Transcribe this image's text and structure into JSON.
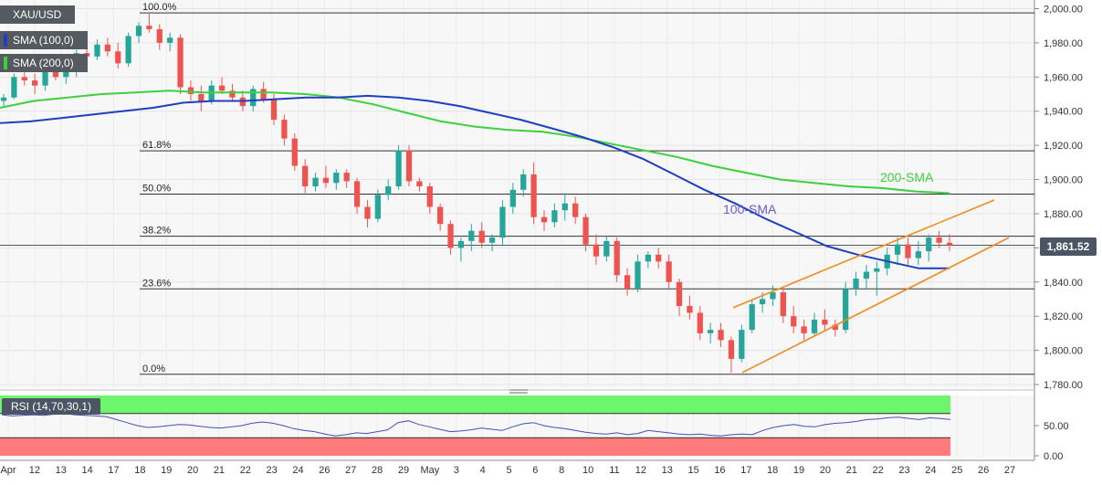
{
  "legend": {
    "symbol": "XAU/USD",
    "sma100": "SMA (100,0)",
    "sma200": "SMA (200,0)",
    "rsi": "RSI (14,70,30,1)"
  },
  "colors": {
    "bull": "#26a69a",
    "bear": "#ef5350",
    "sma100": "#1f3fbf",
    "sma200": "#3cd13c",
    "channel": "#f08c1e",
    "rsi_line": "#3f51b5",
    "rsi_overbought": "#6df56d",
    "rsi_oversold": "#ff7b7b"
  },
  "chart_data": [
    {
      "type": "candlestick",
      "title": "XAU/USD",
      "current_price_label": "1,861.52",
      "current_price": 1861.52,
      "ylim": [
        1780,
        2000
      ],
      "y_ticks": [
        "2,000.00",
        "1,980.00",
        "1,960.00",
        "1,940.00",
        "1,920.00",
        "1,900.00",
        "1,880.00",
        "1,860.00",
        "1,840.00",
        "1,820.00",
        "1,800.00",
        "1,780.00"
      ],
      "y_tick_values": [
        2000,
        1980,
        1960,
        1940,
        1920,
        1900,
        1880,
        1860,
        1840,
        1820,
        1800,
        1780
      ],
      "x_ticks": [
        "Apr",
        "12",
        "13",
        "14",
        "17",
        "18",
        "19",
        "20",
        "21",
        "22",
        "23",
        "24",
        "26",
        "27",
        "28",
        "29",
        "May",
        "3",
        "4",
        "5",
        "6",
        "8",
        "10",
        "11",
        "12",
        "13",
        "15",
        "16",
        "17",
        "18",
        "19",
        "20",
        "21",
        "22",
        "23",
        "24",
        "25",
        "26",
        "27"
      ],
      "fibonacci": [
        {
          "label": "100.0%",
          "price": 1997.5
        },
        {
          "label": "61.8%",
          "price": 1916.8
        },
        {
          "label": "50.0%",
          "price": 1891.5
        },
        {
          "label": "38.2%",
          "price": 1866.8
        },
        {
          "label": "23.6%",
          "price": 1836.0
        },
        {
          "label": "0.0%",
          "price": 1786.0
        }
      ],
      "annotations": [
        {
          "text": "200-SMA",
          "color": "#3cd13c"
        },
        {
          "text": "100-SMA",
          "color": "#6a5acd"
        }
      ],
      "sma100_values": [
        1933,
        1934,
        1936,
        1938,
        1940,
        1942,
        1945,
        1946,
        1946,
        1947,
        1948,
        1948,
        1949,
        1948,
        1946,
        1943,
        1939,
        1935,
        1930,
        1925,
        1919,
        1912,
        1903,
        1894,
        1886,
        1877,
        1869,
        1861,
        1856,
        1852,
        1848,
        1848
      ],
      "sma200_values": [
        1942,
        1946,
        1948,
        1950,
        1951,
        1952,
        1951,
        1951,
        1951,
        1950,
        1948,
        1944,
        1939,
        1934,
        1931,
        1929,
        1928,
        1925,
        1921,
        1917,
        1913,
        1908,
        1904,
        1900,
        1898,
        1896,
        1895,
        1893,
        1892
      ],
      "channel": {
        "upper": [
          [
            1825,
            1888
          ]
        ],
        "lower": [
          [
            1787,
            1866
          ]
        ]
      },
      "candles": [
        [
          1946,
          1950,
          1942,
          1948
        ],
        [
          1948,
          1962,
          1947,
          1960
        ],
        [
          1960,
          1966,
          1955,
          1958
        ],
        [
          1958,
          1962,
          1950,
          1955
        ],
        [
          1955,
          1968,
          1952,
          1966
        ],
        [
          1966,
          1970,
          1958,
          1960
        ],
        [
          1960,
          1967,
          1956,
          1963
        ],
        [
          1963,
          1976,
          1960,
          1974
        ],
        [
          1974,
          1980,
          1968,
          1972
        ],
        [
          1972,
          1982,
          1970,
          1979
        ],
        [
          1979,
          1983,
          1972,
          1975
        ],
        [
          1975,
          1980,
          1965,
          1968
        ],
        [
          1968,
          1986,
          1966,
          1984
        ],
        [
          1984,
          1992,
          1980,
          1990
        ],
        [
          1990,
          1997,
          1986,
          1988
        ],
        [
          1988,
          1991,
          1976,
          1980
        ],
        [
          1980,
          1986,
          1975,
          1983
        ],
        [
          1983,
          1985,
          1950,
          1954
        ],
        [
          1954,
          1958,
          1946,
          1950
        ],
        [
          1950,
          1955,
          1940,
          1946
        ],
        [
          1946,
          1958,
          1944,
          1955
        ],
        [
          1955,
          1960,
          1950,
          1952
        ],
        [
          1952,
          1956,
          1946,
          1948
        ],
        [
          1948,
          1952,
          1940,
          1943
        ],
        [
          1943,
          1955,
          1940,
          1953
        ],
        [
          1953,
          1957,
          1945,
          1947
        ],
        [
          1947,
          1950,
          1932,
          1935
        ],
        [
          1935,
          1938,
          1920,
          1924
        ],
        [
          1924,
          1927,
          1905,
          1908
        ],
        [
          1908,
          1912,
          1892,
          1896
        ],
        [
          1896,
          1904,
          1893,
          1901
        ],
        [
          1901,
          1908,
          1895,
          1898
        ],
        [
          1898,
          1906,
          1894,
          1904
        ],
        [
          1904,
          1906,
          1895,
          1899
        ],
        [
          1899,
          1901,
          1880,
          1884
        ],
        [
          1884,
          1888,
          1872,
          1877
        ],
        [
          1877,
          1894,
          1875,
          1891
        ],
        [
          1891,
          1900,
          1888,
          1896
        ],
        [
          1896,
          1920,
          1894,
          1917
        ],
        [
          1917,
          1920,
          1896,
          1899
        ],
        [
          1899,
          1901,
          1893,
          1896
        ],
        [
          1896,
          1898,
          1880,
          1884
        ],
        [
          1884,
          1886,
          1870,
          1874
        ],
        [
          1874,
          1876,
          1856,
          1860
        ],
        [
          1860,
          1866,
          1852,
          1864
        ],
        [
          1864,
          1874,
          1858,
          1870
        ],
        [
          1870,
          1875,
          1860,
          1863
        ],
        [
          1863,
          1868,
          1858,
          1866
        ],
        [
          1866,
          1888,
          1862,
          1884
        ],
        [
          1884,
          1898,
          1880,
          1894
        ],
        [
          1894,
          1906,
          1890,
          1903
        ],
        [
          1903,
          1910,
          1874,
          1878
        ],
        [
          1878,
          1882,
          1870,
          1875
        ],
        [
          1875,
          1886,
          1872,
          1882
        ],
        [
          1882,
          1892,
          1876,
          1886
        ],
        [
          1886,
          1890,
          1874,
          1878
        ],
        [
          1878,
          1880,
          1858,
          1862
        ],
        [
          1862,
          1868,
          1850,
          1855
        ],
        [
          1855,
          1867,
          1852,
          1864
        ],
        [
          1864,
          1866,
          1840,
          1844
        ],
        [
          1844,
          1848,
          1832,
          1836
        ],
        [
          1836,
          1856,
          1834,
          1852
        ],
        [
          1852,
          1858,
          1848,
          1856
        ],
        [
          1856,
          1860,
          1848,
          1852
        ],
        [
          1852,
          1856,
          1836,
          1840
        ],
        [
          1840,
          1842,
          1820,
          1826
        ],
        [
          1826,
          1832,
          1818,
          1822
        ],
        [
          1822,
          1826,
          1806,
          1810
        ],
        [
          1810,
          1816,
          1804,
          1812
        ],
        [
          1812,
          1816,
          1802,
          1806
        ],
        [
          1806,
          1808,
          1787,
          1795
        ],
        [
          1795,
          1815,
          1793,
          1812
        ],
        [
          1812,
          1830,
          1810,
          1827
        ],
        [
          1827,
          1834,
          1822,
          1830
        ],
        [
          1830,
          1838,
          1826,
          1834
        ],
        [
          1834,
          1836,
          1816,
          1820
        ],
        [
          1820,
          1826,
          1810,
          1814
        ],
        [
          1814,
          1818,
          1806,
          1810
        ],
        [
          1810,
          1822,
          1808,
          1818
        ],
        [
          1818,
          1824,
          1812,
          1815
        ],
        [
          1815,
          1818,
          1808,
          1812
        ],
        [
          1812,
          1840,
          1810,
          1836
        ],
        [
          1836,
          1846,
          1832,
          1842
        ],
        [
          1842,
          1850,
          1836,
          1846
        ],
        [
          1846,
          1852,
          1832,
          1848
        ],
        [
          1848,
          1860,
          1844,
          1856
        ],
        [
          1856,
          1866,
          1850,
          1862
        ],
        [
          1862,
          1866,
          1850,
          1854
        ],
        [
          1854,
          1864,
          1850,
          1858
        ],
        [
          1858,
          1868,
          1852,
          1866
        ],
        [
          1866,
          1870,
          1860,
          1863
        ],
        [
          1863,
          1868,
          1858,
          1861.52
        ]
      ]
    },
    {
      "type": "line",
      "title": "RSI (14,70,30,1)",
      "ylim": [
        0,
        100
      ],
      "y_ticks": [
        "50.00",
        "0.00"
      ],
      "y_tick_values": [
        50,
        0
      ],
      "overbought": 70,
      "oversold": 30,
      "values": [
        68,
        66,
        67,
        68,
        67,
        69,
        70,
        68,
        67,
        66,
        65,
        60,
        55,
        50,
        47,
        48,
        50,
        52,
        51,
        49,
        47,
        46,
        48,
        50,
        54,
        56,
        54,
        50,
        45,
        42,
        40,
        36,
        33,
        35,
        38,
        37,
        40,
        43,
        55,
        58,
        52,
        48,
        44,
        40,
        41,
        43,
        46,
        44,
        42,
        48,
        53,
        55,
        50,
        47,
        45,
        42,
        39,
        37,
        36,
        38,
        35,
        37,
        42,
        40,
        38,
        36,
        35,
        36,
        34,
        33,
        35,
        36,
        35,
        42,
        47,
        50,
        52,
        49,
        48,
        52,
        54,
        55,
        57,
        60,
        61,
        63,
        64,
        62,
        60,
        63,
        62,
        60
      ]
    }
  ]
}
